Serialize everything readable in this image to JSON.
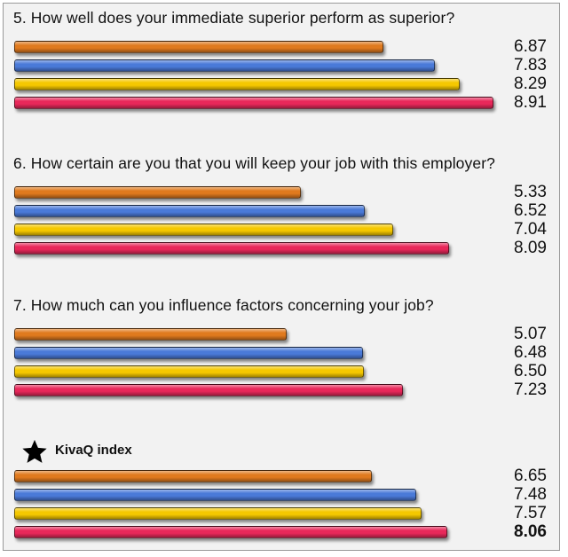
{
  "colors": {
    "series": [
      "#e07a1e",
      "#4a7ad8",
      "#f5c800",
      "#e8285a"
    ]
  },
  "chart_data": [
    {
      "type": "bar",
      "orientation": "horizontal",
      "title": "5. How well does your immediate superior perform as superior?",
      "values": [
        6.87,
        7.83,
        8.29,
        8.91
      ],
      "value_labels": [
        "6.87",
        "7.83",
        "8.29",
        "8.91"
      ]
    },
    {
      "type": "bar",
      "orientation": "horizontal",
      "title": "6. How certain are you that you will keep your job with this employer?",
      "values": [
        5.33,
        6.52,
        7.04,
        8.09
      ],
      "value_labels": [
        "5.33",
        "6.52",
        "7.04",
        "8.09"
      ]
    },
    {
      "type": "bar",
      "orientation": "horizontal",
      "title": "7. How much can you influence factors concerning your job?",
      "values": [
        5.07,
        6.48,
        6.5,
        7.23
      ],
      "value_labels": [
        "5.07",
        "6.48",
        "6.50",
        "7.23"
      ]
    },
    {
      "type": "bar",
      "orientation": "horizontal",
      "title": "KivaQ index",
      "icon": "star-icon",
      "values": [
        6.65,
        7.48,
        7.57,
        8.06
      ],
      "value_labels": [
        "6.65",
        "7.48",
        "7.57",
        "8.06"
      ],
      "bold_label_index": 3
    }
  ]
}
